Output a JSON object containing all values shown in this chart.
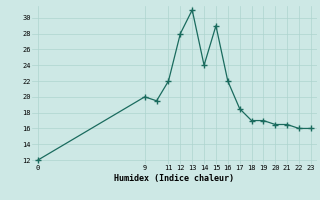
{
  "title": "",
  "xlabel": "Humidex (Indice chaleur)",
  "ylabel": "",
  "background_color": "#cde8e5",
  "line_color": "#1a6b5e",
  "x_data": [
    0,
    9,
    10,
    11,
    12,
    13,
    14,
    15,
    16,
    17,
    18,
    19,
    20,
    21,
    22,
    23
  ],
  "y_data": [
    12,
    20,
    19.5,
    22,
    28,
    31,
    24,
    29,
    22,
    18.5,
    17,
    17,
    16.5,
    16.5,
    16,
    16
  ],
  "xlim": [
    -0.5,
    23.5
  ],
  "ylim": [
    11.5,
    31.5
  ],
  "xticks": [
    0,
    9,
    11,
    12,
    13,
    14,
    15,
    16,
    17,
    18,
    19,
    20,
    21,
    22,
    23
  ],
  "yticks": [
    12,
    14,
    16,
    18,
    20,
    22,
    24,
    26,
    28,
    30
  ],
  "grid_color": "#aed4cf",
  "marker": "+",
  "markersize": 4,
  "markeredgewidth": 1.0,
  "linewidth": 0.9,
  "xlabel_fontsize": 6,
  "tick_fontsize": 5,
  "xlabel_fontweight": "bold"
}
